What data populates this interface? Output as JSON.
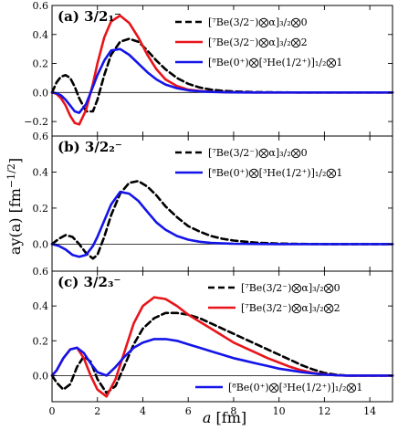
{
  "chart_data": {
    "type": "line",
    "xlabel": "a [fm]",
    "ylabel": "ay(a) [fm^-1/2]",
    "xlim": [
      0,
      15
    ],
    "x_ticks": [
      "0",
      "2",
      "4",
      "6",
      "8",
      "10",
      "12",
      "14"
    ],
    "x_tick_values": [
      0,
      2,
      4,
      6,
      8,
      10,
      12,
      14
    ],
    "series_styles": {
      "alpha0": {
        "color": "#000000",
        "dash": "dashed"
      },
      "alpha2": {
        "color": "#e8141a",
        "dash": "solid"
      },
      "he1": {
        "color": "#1414e8",
        "dash": "solid"
      }
    },
    "panels": [
      {
        "title": "(a) 3/2₁⁻",
        "ylim": [
          -0.3,
          0.6
        ],
        "y_ticks": [
          "0.6",
          "0.4",
          "0.2",
          "0.0",
          "−0.2"
        ],
        "y_tick_values": [
          0.6,
          0.4,
          0.2,
          0.0,
          -0.2
        ],
        "legend_position": "top-right",
        "series": [
          {
            "key": "alpha0",
            "name": "[⁷Be(3/2⁻)⨂α]₃/₂⨂0",
            "x": [
              0,
              0.2,
              0.4,
              0.6,
              0.8,
              1.0,
              1.2,
              1.5,
              1.8,
              2.0,
              2.3,
              2.6,
              3.0,
              3.4,
              3.8,
              4.2,
              4.6,
              5.0,
              5.5,
              6.0,
              6.5,
              7.0,
              7.5,
              8.0,
              9.0,
              10.0,
              11.0,
              12.0,
              15.0
            ],
            "y": [
              0,
              0.07,
              0.11,
              0.12,
              0.1,
              0.04,
              -0.04,
              -0.13,
              -0.13,
              -0.05,
              0.12,
              0.26,
              0.35,
              0.37,
              0.35,
              0.29,
              0.22,
              0.16,
              0.1,
              0.06,
              0.035,
              0.02,
              0.012,
              0.007,
              0.003,
              0.001,
              0,
              0,
              0
            ]
          },
          {
            "key": "alpha2",
            "name": "[⁷Be(3/2⁻)⨂α]₃/₂⨂2",
            "x": [
              0,
              0.2,
              0.4,
              0.6,
              0.8,
              1.0,
              1.2,
              1.5,
              1.8,
              2.0,
              2.3,
              2.6,
              3.0,
              3.4,
              3.8,
              4.2,
              4.6,
              5.0,
              5.5,
              6.0,
              6.5,
              7.0,
              7.5,
              8.0,
              9.0,
              10.0,
              11.0,
              12.0,
              15.0
            ],
            "y": [
              0,
              -0.01,
              -0.04,
              -0.09,
              -0.16,
              -0.21,
              -0.22,
              -0.12,
              0.06,
              0.2,
              0.38,
              0.49,
              0.53,
              0.48,
              0.38,
              0.26,
              0.16,
              0.09,
              0.045,
              0.02,
              0.01,
              0.005,
              0.002,
              0.001,
              0,
              0,
              0,
              0,
              0
            ]
          },
          {
            "key": "he1",
            "name": "[⁸Be(0⁺)⨂[³He(1/2⁺)]₁/₂⨂1",
            "x": [
              0,
              0.2,
              0.4,
              0.6,
              0.8,
              1.0,
              1.2,
              1.5,
              1.8,
              2.0,
              2.3,
              2.6,
              3.0,
              3.4,
              3.8,
              4.2,
              4.6,
              5.0,
              5.5,
              6.0,
              6.5,
              7.0,
              7.5,
              8.0,
              9.0,
              10.0,
              11.0,
              12.0,
              15.0
            ],
            "y": [
              0,
              -0.005,
              -0.02,
              -0.05,
              -0.09,
              -0.13,
              -0.14,
              -0.08,
              0.04,
              0.12,
              0.22,
              0.29,
              0.3,
              0.26,
              0.2,
              0.14,
              0.09,
              0.055,
              0.03,
              0.015,
              0.008,
              0.004,
              0.002,
              0.001,
              0,
              0,
              0,
              0,
              0
            ]
          }
        ]
      },
      {
        "title": "(b) 3/2₂⁻",
        "ylim": [
          -0.15,
          0.6
        ],
        "y_ticks": [
          "0.6",
          "0.4",
          "0.2",
          "0.0"
        ],
        "y_tick_values": [
          0.6,
          0.4,
          0.2,
          0.0
        ],
        "legend_position": "top-right",
        "series": [
          {
            "key": "alpha0",
            "name": "[⁷Be(3/2⁻)⨂α]₃/₂⨂0",
            "x": [
              0,
              0.3,
              0.6,
              0.9,
              1.2,
              1.5,
              1.8,
              2.0,
              2.3,
              2.6,
              3.0,
              3.4,
              3.8,
              4.2,
              4.6,
              5.0,
              5.5,
              6.0,
              6.5,
              7.0,
              7.5,
              8.0,
              9.0,
              10.0,
              11.0,
              12.0,
              15.0
            ],
            "y": [
              0,
              0.03,
              0.05,
              0.04,
              0.0,
              -0.05,
              -0.08,
              -0.06,
              0.04,
              0.16,
              0.28,
              0.34,
              0.35,
              0.32,
              0.27,
              0.21,
              0.15,
              0.1,
              0.07,
              0.045,
              0.03,
              0.02,
              0.008,
              0.003,
              0.001,
              0,
              0
            ]
          },
          {
            "key": "he1",
            "name": "[⁸Be(0⁺)⨂[³He(1/2⁺)]₁/₂⨂1",
            "x": [
              0,
              0.3,
              0.6,
              0.9,
              1.2,
              1.5,
              1.8,
              2.0,
              2.3,
              2.6,
              3.0,
              3.4,
              3.8,
              4.2,
              4.6,
              5.0,
              5.5,
              6.0,
              6.5,
              7.0,
              7.5,
              8.0,
              9.0,
              10.0,
              11.0,
              12.0,
              15.0
            ],
            "y": [
              0,
              -0.01,
              -0.03,
              -0.06,
              -0.07,
              -0.06,
              -0.01,
              0.04,
              0.13,
              0.22,
              0.29,
              0.28,
              0.24,
              0.18,
              0.12,
              0.08,
              0.045,
              0.025,
              0.013,
              0.007,
              0.004,
              0.002,
              0.001,
              0,
              0,
              0,
              0
            ]
          }
        ]
      },
      {
        "title": "(c) 3/2₃⁻",
        "ylim": [
          -0.15,
          0.6
        ],
        "y_ticks": [
          "0.6",
          "0.4",
          "0.2",
          "0.0"
        ],
        "y_tick_values": [
          0.6,
          0.4,
          0.2,
          0.0
        ],
        "legend_position": "right",
        "series": [
          {
            "key": "alpha0",
            "name": "[⁷Be(3/2⁻)⨂α]₃/₂⨂0",
            "x": [
              0,
              0.2,
              0.5,
              0.8,
              1.1,
              1.4,
              1.7,
              2.0,
              2.4,
              2.8,
              3.2,
              3.6,
              4.0,
              4.5,
              5.0,
              5.5,
              6.0,
              6.5,
              7.0,
              7.5,
              8.0,
              8.5,
              9.0,
              9.5,
              10.0,
              10.5,
              11.0,
              11.5,
              12.0,
              12.5,
              13.0,
              15.0
            ],
            "y": [
              0,
              -0.04,
              -0.08,
              -0.05,
              0.05,
              0.11,
              0.08,
              -0.02,
              -0.1,
              -0.06,
              0.06,
              0.18,
              0.27,
              0.33,
              0.36,
              0.36,
              0.35,
              0.33,
              0.3,
              0.27,
              0.24,
              0.21,
              0.18,
              0.15,
              0.12,
              0.09,
              0.06,
              0.035,
              0.015,
              0.005,
              0,
              0
            ]
          },
          {
            "key": "alpha2",
            "name": "[⁷Be(3/2⁻)⨂α]₃/₂⨂2",
            "x": [
              0,
              0.2,
              0.5,
              0.8,
              1.1,
              1.4,
              1.7,
              2.0,
              2.4,
              2.8,
              3.2,
              3.6,
              4.0,
              4.5,
              5.0,
              5.5,
              6.0,
              6.5,
              7.0,
              7.5,
              8.0,
              8.5,
              9.0,
              9.5,
              10.0,
              10.5,
              11.0,
              11.5,
              12.0,
              12.5,
              13.0,
              15.0
            ],
            "y": [
              0,
              0.03,
              0.1,
              0.15,
              0.16,
              0.1,
              0.0,
              -0.08,
              -0.12,
              -0.02,
              0.14,
              0.3,
              0.4,
              0.45,
              0.44,
              0.4,
              0.35,
              0.31,
              0.27,
              0.23,
              0.19,
              0.16,
              0.13,
              0.1,
              0.075,
              0.05,
              0.03,
              0.015,
              0.007,
              0.002,
              0,
              0
            ]
          },
          {
            "key": "he1",
            "name": "[⁸Be(0⁺)⨂[³He(1/2⁺)]₁/₂⨂1",
            "x": [
              0,
              0.2,
              0.5,
              0.8,
              1.1,
              1.4,
              1.7,
              2.0,
              2.4,
              2.8,
              3.2,
              3.6,
              4.0,
              4.5,
              5.0,
              5.5,
              6.0,
              6.5,
              7.0,
              7.5,
              8.0,
              8.5,
              9.0,
              9.5,
              10.0,
              10.5,
              11.0,
              11.5,
              12.0,
              12.5,
              13.0,
              15.0
            ],
            "y": [
              0,
              0.03,
              0.1,
              0.15,
              0.16,
              0.13,
              0.07,
              0.02,
              0.0,
              0.05,
              0.11,
              0.16,
              0.19,
              0.21,
              0.21,
              0.2,
              0.18,
              0.16,
              0.14,
              0.12,
              0.1,
              0.085,
              0.07,
              0.055,
              0.04,
              0.03,
              0.02,
              0.012,
              0.006,
              0.002,
              0,
              0
            ]
          }
        ]
      }
    ]
  }
}
